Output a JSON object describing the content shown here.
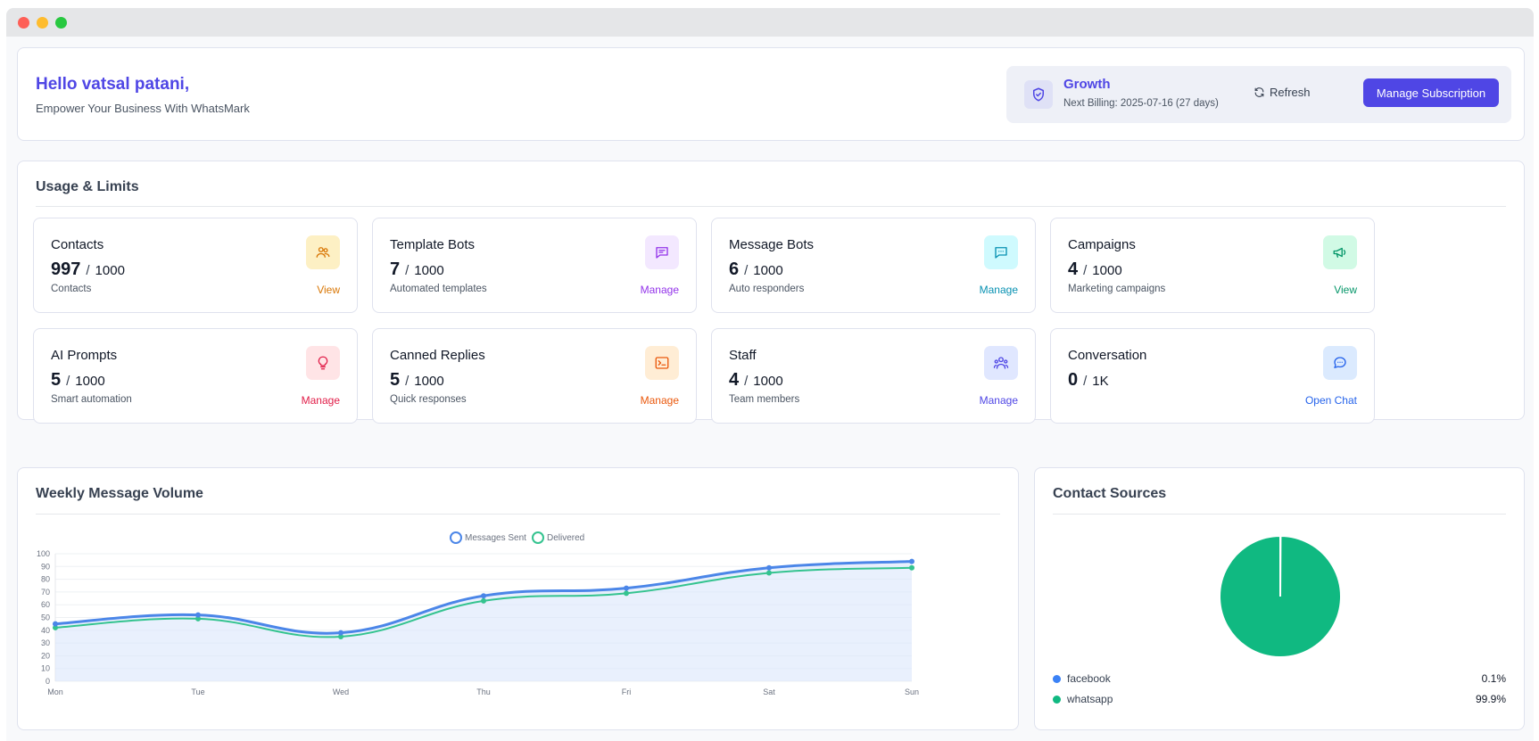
{
  "header": {
    "greeting": "Hello vatsal patani,",
    "tagline": "Empower Your Business With WhatsMark",
    "plan": "Growth",
    "billing": "Next Billing: 2025-07-16 (27 days)",
    "refresh_label": "Refresh",
    "manage_label": "Manage Subscription"
  },
  "usage": {
    "title": "Usage & Limits",
    "cards": [
      {
        "label": "Contacts",
        "value": "997",
        "limit": "1000",
        "desc": "Contacts",
        "action": "View",
        "icon": "users-icon",
        "color": "#d97706",
        "bg": "#fdf0c4"
      },
      {
        "label": "Template Bots",
        "value": "7",
        "limit": "1000",
        "desc": "Automated templates",
        "action": "Manage",
        "icon": "message-lines-icon",
        "color": "#9333ea",
        "bg": "#f3e8ff"
      },
      {
        "label": "Message Bots",
        "value": "6",
        "limit": "1000",
        "desc": "Auto responders",
        "action": "Manage",
        "icon": "chat-dots-icon",
        "color": "#0891b2",
        "bg": "#cffafe"
      },
      {
        "label": "Campaigns",
        "value": "4",
        "limit": "1000",
        "desc": "Marketing campaigns",
        "action": "View",
        "icon": "megaphone-icon",
        "color": "#059669",
        "bg": "#d1fae5"
      },
      {
        "label": "AI Prompts",
        "value": "5",
        "limit": "1000",
        "desc": "Smart automation",
        "action": "Manage",
        "icon": "lightbulb-icon",
        "color": "#e11d48",
        "bg": "#ffe4e6"
      },
      {
        "label": "Canned Replies",
        "value": "5",
        "limit": "1000",
        "desc": "Quick responses",
        "action": "Manage",
        "icon": "terminal-icon",
        "color": "#ea580c",
        "bg": "#ffedd5"
      },
      {
        "label": "Staff",
        "value": "4",
        "limit": "1000",
        "desc": "Team members",
        "action": "Manage",
        "icon": "team-icon",
        "color": "#4f46e5",
        "bg": "#e0e7ff"
      },
      {
        "label": "Conversation",
        "value": "0",
        "limit": "1K",
        "desc": "",
        "action": "Open Chat",
        "icon": "chat-bubble-icon",
        "color": "#2563eb",
        "bg": "#dbeafe"
      }
    ]
  },
  "weekly": {
    "title": "Weekly Message Volume",
    "chart_data": {
      "type": "line",
      "categories": [
        "Mon",
        "Tue",
        "Wed",
        "Thu",
        "Fri",
        "Sat",
        "Sun"
      ],
      "series": [
        {
          "name": "Messages Sent",
          "values": [
            45,
            52,
            38,
            67,
            73,
            89,
            94
          ],
          "color": "#4b86e8"
        },
        {
          "name": "Delivered",
          "values": [
            42,
            49,
            35,
            63,
            69,
            85,
            89
          ],
          "color": "#34c38f"
        }
      ],
      "ylim": [
        0,
        100
      ],
      "yticks": [
        0,
        10,
        20,
        30,
        40,
        50,
        60,
        70,
        80,
        90,
        100
      ],
      "legend": "top"
    }
  },
  "sources": {
    "title": "Contact Sources",
    "chart_data": {
      "type": "pie",
      "slices": [
        {
          "name": "facebook",
          "value": 0.1,
          "label": "0.1%",
          "color": "#3b82f6"
        },
        {
          "name": "whatsapp",
          "value": 99.9,
          "label": "99.9%",
          "color": "#10b981"
        }
      ]
    }
  }
}
